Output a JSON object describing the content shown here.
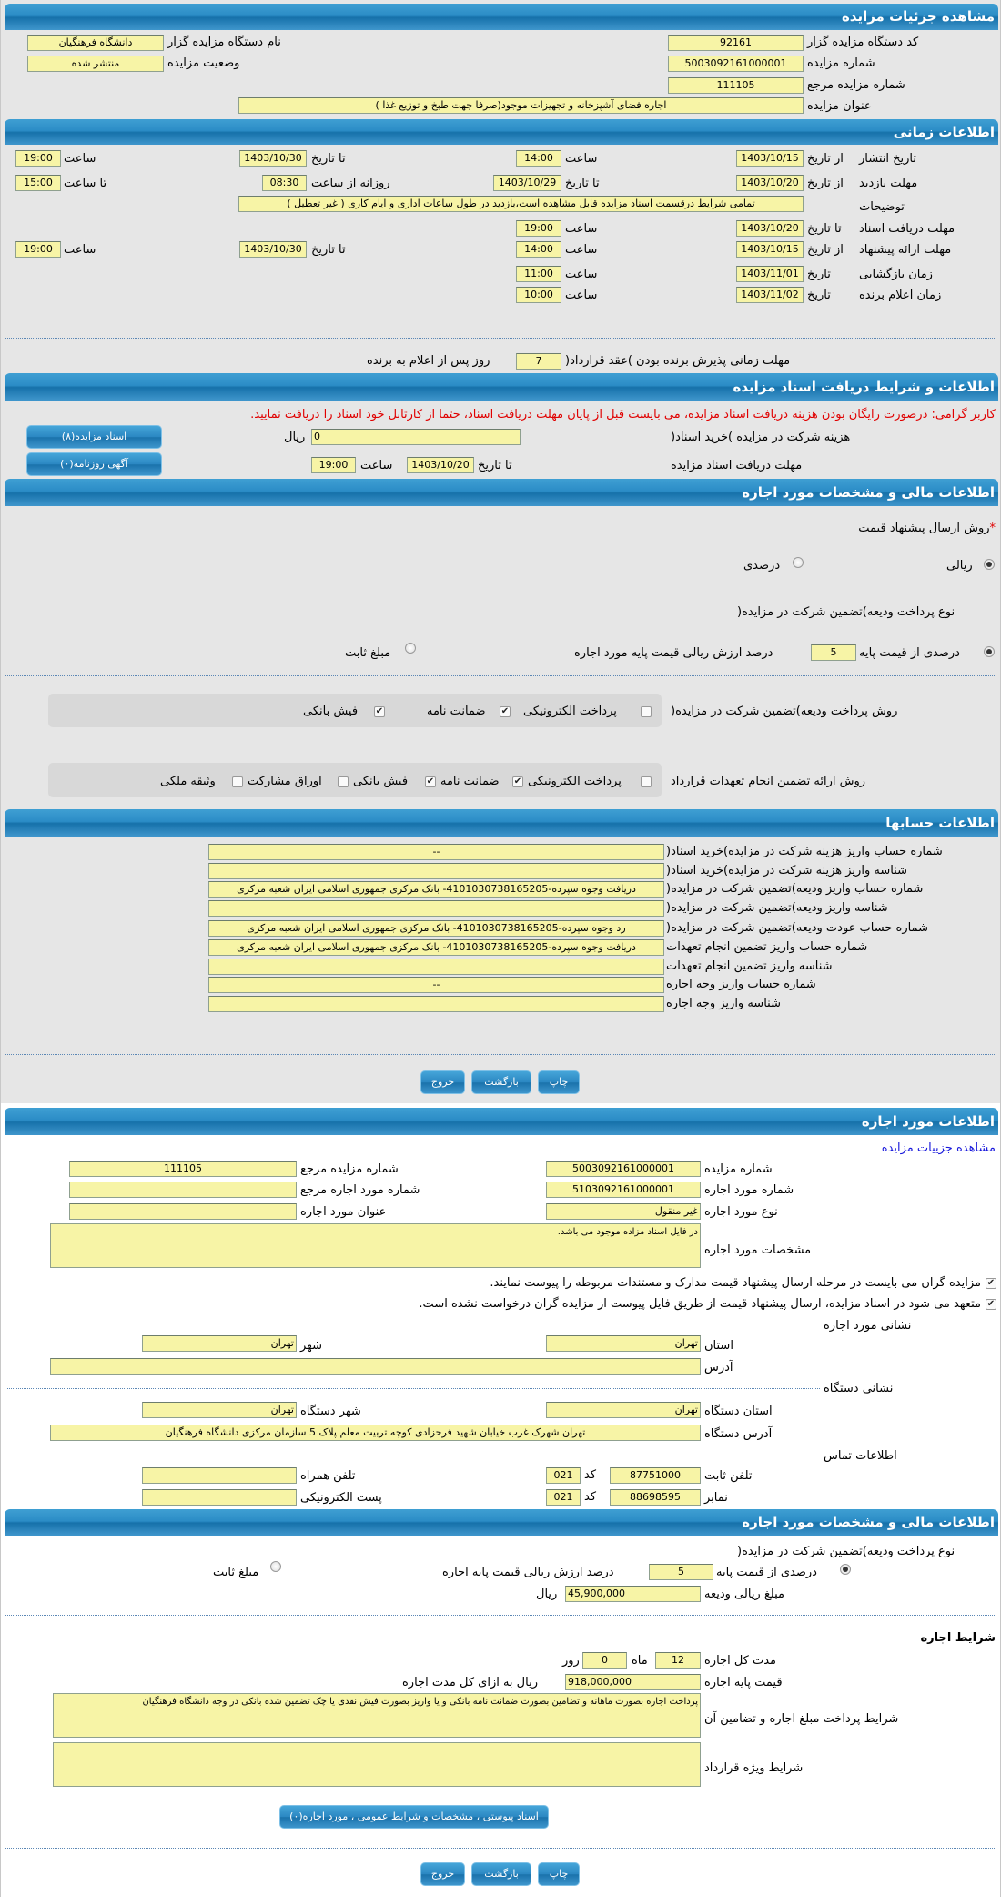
{
  "auction": {
    "title": "مشاهده جزئیات مزایده",
    "org_code_label": "کد دستگاه مزایده گزار",
    "org_code": "92161",
    "auction_no_label": "شماره مزایده",
    "auction_no": "5003092161000001",
    "ref_no_label": "شماره مزایده مرجع",
    "ref_no": "111105",
    "subject_label": "عنوان مزایده",
    "subject": "اجاره فضای آشپزخانه و تجهیزات موجود(صرفا جهت طبخ و توزیع غذا )",
    "org_name_label": "نام دستگاه مزایده گزار",
    "org_name": "دانشگاه فرهنگیان",
    "status_label": "وضعیت مزایده",
    "status": "منتشر شده"
  },
  "timing": {
    "title": "اطلاعات زمانی",
    "from_date": "از تاریخ",
    "to_date": "تا تاریخ",
    "date": "تاریخ",
    "time": "ساعت",
    "until_time": "تا ساعت",
    "daily_from": "روزانه از ساعت",
    "publish": {
      "label": "تاریخ انتشار",
      "from": "1403/10/15",
      "from_time": "14:00",
      "to": "1403/10/30",
      "to_time": "19:00"
    },
    "visit": {
      "label": "مهلت بازدید",
      "from": "1403/10/20",
      "to": "1403/10/29",
      "daily_from": "08:30",
      "daily_to": "15:00"
    },
    "desc": {
      "label": "توضیحات",
      "value": "تمامی شرایط درقسمت اسناد مزایده قابل مشاهده است،بازدید در طول ساعات اداری و ایام کاری ( غیر تعطیل )"
    },
    "docs": {
      "label": "مهلت دریافت اسناد",
      "to": "1403/10/20",
      "time": "19:00"
    },
    "offer": {
      "label": "مهلت ارائه پیشنهاد",
      "from": "1403/10/15",
      "from_time": "14:00",
      "to": "1403/10/30",
      "to_time": "19:00"
    },
    "opening": {
      "label": "زمان بازگشایی",
      "date": "1403/11/01",
      "time": "11:00"
    },
    "winner": {
      "label": "زمان اعلام برنده",
      "date": "1403/11/02",
      "time": "10:00"
    },
    "acceptance": {
      "label": "مهلت زمانی پذیرش برنده بودن )عقد قرارداد(",
      "days": "7",
      "suffix": "روز پس از اعلام به برنده"
    }
  },
  "documents": {
    "title": "اطلاعات و شرایط دریافت اسناد مزایده",
    "warning": "کاربر گرامی: درصورت رایگان بودن هزینه دریافت اسناد مزایده، می بایست قبل از پایان مهلت دریافت اسناد، حتما از کارتابل خود اسناد را دریافت نمایید.",
    "fee_label": "هزینه شرکت در مزایده )خرید اسناد(",
    "fee": "0",
    "currency": "ریال",
    "deadline_label": "مهلت دریافت اسناد مزایده",
    "to_date_label": "تا تاریخ",
    "to_date": "1403/10/20",
    "time_label": "ساعت",
    "time": "19:00",
    "docs_button": "اسناد مزایده(۸)",
    "ad_button": "آگهی روزنامه(۰)"
  },
  "financial": {
    "title": "اطلاعات مالی و مشخصات مورد اجاره",
    "required_mark": "*",
    "price_method_label": "روش ارسال پیشنهاد قیمت",
    "opt_rial": "ریالی",
    "opt_percent": "درصدی",
    "price_method": "ریالی",
    "deposit_type_label": "نوع پرداخت ودیعه)تضمین شرکت در مزایده(",
    "opt_percent_base": "درصدی از قیمت پایه",
    "percent": "5",
    "percent_suffix": "درصد ارزش ریالی قیمت پایه مورد اجاره",
    "opt_fixed": "مبلغ ثابت",
    "deposit_pay_label": "روش پرداخت ودیعه)تضمین شرکت در مزایده(",
    "deposit_pay": [
      {
        "label": "پرداخت الکترونیکی",
        "checked": false
      },
      {
        "label": "ضمانت نامه",
        "checked": true
      },
      {
        "label": "فیش بانکی",
        "checked": true
      }
    ],
    "guarantee_label": "روش ارائه تضمین انجام تعهدات قرارداد",
    "guarantee": [
      {
        "label": "پرداخت الکترونیکی",
        "checked": false
      },
      {
        "label": "ضمانت نامه",
        "checked": true
      },
      {
        "label": "فیش بانکی",
        "checked": true
      },
      {
        "label": "اوراق مشارکت",
        "checked": false
      },
      {
        "label": "وثیقه ملکی",
        "checked": false
      }
    ]
  },
  "accounts": {
    "title": "اطلاعات حسابها",
    "rows": [
      {
        "label": "شماره حساب واریز هزینه شرکت در مزایده)خرید اسناد(",
        "value": "--"
      },
      {
        "label": "شناسه واریز هزینه شرکت در مزایده)خرید اسناد(",
        "value": ""
      },
      {
        "label": "شماره حساب واریز ودیعه)تضمین شرکت در مزایده(",
        "value": "دریافت وجوه سپرده-4101030738165205- بانک مرکزی جمهوری اسلامی ایران شعبه مرکزی"
      },
      {
        "label": "شناسه واریز ودیعه)تضمین شرکت در مزایده(",
        "value": ""
      },
      {
        "label": "شماره حساب عودت ودیعه)تضمین شرکت در مزایده(",
        "value": "رد وجوه سپرده-4101030738165205- بانک مرکزی جمهوری اسلامی ایران شعبه مرکزی"
      },
      {
        "label": "شماره حساب واریز تضمین انجام تعهدات",
        "value": "دریافت وجوه سپرده-4101030738165205- بانک مرکزی جمهوری اسلامی ایران شعبه مرکزی"
      },
      {
        "label": "شناسه واریز تضمین انجام تعهدات",
        "value": ""
      },
      {
        "label": "شماره حساب واریز وجه اجاره",
        "value": "--"
      },
      {
        "label": "شناسه واریز وجه اجاره",
        "value": ""
      }
    ]
  },
  "actions": {
    "print": "چاپ",
    "back": "بازگشت",
    "exit": "خروج"
  },
  "lease": {
    "title": "اطلاعات مورد اجاره",
    "details_link": "مشاهده جزییات مزایده",
    "auction_no_label": "شماره مزایده",
    "auction_no": "5003092161000001",
    "ref_no_label": "شماره مزایده مرجع",
    "ref_no": "111105",
    "item_no_label": "شماره مورد اجاره",
    "item_no": "5103092161000001",
    "item_ref_label": "شماره مورد اجاره مرجع",
    "item_ref": "",
    "type_label": "نوع مورد اجاره",
    "type": "غیر منقول",
    "item_title_label": "عنوان مورد اجاره",
    "item_title": "",
    "spec_label": "مشخصات مورد اجاره",
    "spec": "در فایل اسناد مزاده موجود می باشد.",
    "check1": "مزایده گران می بایست در مرحله ارسال پیشنهاد قیمت مدارک و مستندات مربوطه را پیوست نمایند.",
    "check2": "متعهد می شود در اسناد مزایده، ارسال پیشنهاد قیمت از طریق فایل پیوست از مزایده گران درخواست نشده است.",
    "address_title": "نشانی مورد اجاره",
    "province_label": "استان",
    "province": "تهران",
    "city_label": "شهر",
    "city": "تهران",
    "address_label": "آدرس",
    "address": "",
    "org_address_title": "نشانی دستگاه",
    "org_province_label": "استان دستگاه",
    "org_province": "تهران",
    "org_city_label": "شهر دستگاه",
    "org_city": "تهران",
    "org_address_label": "آدرس دستگاه",
    "org_address": "تهران شهرک غرب خیابان شهید فرحزادی کوچه تربیت معلم پلاک 5 سازمان مرکزی دانشگاه فرهنگیان",
    "contact_title": "اطلاعات تماس",
    "phone_label": "تلفن ثابت",
    "phone": "87751000",
    "code_label": "کد",
    "phone_code": "021",
    "mobile_label": "تلفن همراه",
    "mobile": "",
    "fax_label": "نمابر",
    "fax": "88698595",
    "fax_code": "021",
    "email_label": "پست الکترونیکی",
    "email": ""
  },
  "lease_financial": {
    "title": "اطلاعات مالی و مشخصات مورد اجاره",
    "deposit_type_label": "نوع پرداخت ودیعه)تضمین شرکت در مزایده(",
    "opt_percent_base": "درصدی از قیمت پایه",
    "percent": "5",
    "percent_suffix": "درصد ارزش ریالی قیمت پایه اجاره",
    "opt_fixed": "مبلغ ثابت",
    "deposit_amount_label": "مبلغ ریالی ودیعه",
    "deposit_amount": "45,900,000",
    "currency": "ریال",
    "terms_title": "شرایط اجاره",
    "duration_label": "مدت کل اجاره",
    "months": "12",
    "months_label": "ماه",
    "days": "0",
    "days_label": "روز",
    "base_price_label": "قیمت پایه اجاره",
    "base_price": "918,000,000",
    "base_price_suffix": "ریال به ازای کل مدت اجاره",
    "payment_terms_label": "شرایط پرداخت مبلغ اجاره و تضامین آن",
    "payment_terms": "پرداخت اجاره بصورت ماهانه و تضامین بصورت ضمانت نامه بانکی و یا واریز بصورت فیش نقدی یا چک تضمین شده بانکی در وجه دانشگاه فرهنگیان",
    "special_terms_label": "شرایط ویژه قرارداد",
    "special_terms": "",
    "attachments_button": "اسناد پیوستی ، مشخصات و شرایط عمومی ، مورد اجاره(۰)"
  },
  "colors": {
    "header": "#2b8cc6",
    "input_bg": "#f7f4a6",
    "warning": "#e00000",
    "link": "#1a1adc"
  }
}
